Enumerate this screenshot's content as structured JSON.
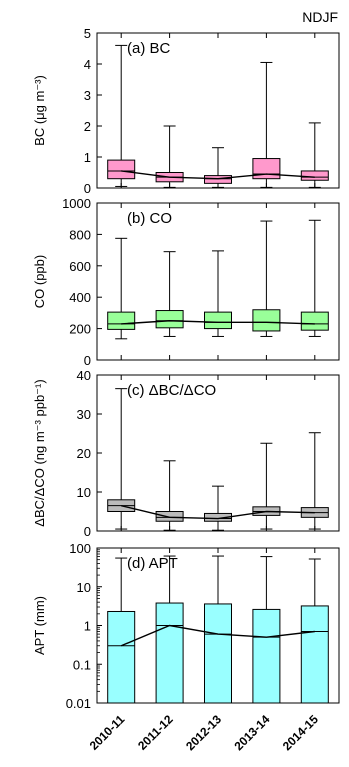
{
  "figure": {
    "season_label": "NDJF"
  },
  "chart_data": [
    {
      "type": "box",
      "panel_label": "(a) BC",
      "ylabel": "BC (μg m⁻³)",
      "ylim": [
        0,
        5
      ],
      "yscale": "linear",
      "yticks": [
        0,
        1,
        2,
        3,
        4,
        5
      ],
      "box_color": "#ff99cc",
      "categories": [
        "2010-11",
        "2011-12",
        "2012-13",
        "2013-14",
        "2014-15"
      ],
      "boxes": [
        {
          "category": "2010-11",
          "min": 0.05,
          "q1": 0.3,
          "median": 0.55,
          "q3": 0.9,
          "max": 4.6
        },
        {
          "category": "2011-12",
          "min": 0.02,
          "q1": 0.2,
          "median": 0.35,
          "q3": 0.5,
          "max": 2.0
        },
        {
          "category": "2012-13",
          "min": 0.02,
          "q1": 0.15,
          "median": 0.3,
          "q3": 0.4,
          "max": 1.3
        },
        {
          "category": "2013-14",
          "min": 0.02,
          "q1": 0.3,
          "median": 0.45,
          "q3": 0.95,
          "max": 4.05
        },
        {
          "category": "2014-15",
          "min": 0.02,
          "q1": 0.25,
          "median": 0.35,
          "q3": 0.55,
          "max": 2.1
        }
      ]
    },
    {
      "type": "box",
      "panel_label": "(b) CO",
      "ylabel": "CO (ppb)",
      "ylim": [
        0,
        1000
      ],
      "yscale": "linear",
      "yticks": [
        0,
        200,
        400,
        600,
        800,
        1000
      ],
      "box_color": "#99ff99",
      "categories": [
        "2010-11",
        "2011-12",
        "2012-13",
        "2013-14",
        "2014-15"
      ],
      "boxes": [
        {
          "category": "2010-11",
          "min": 135,
          "q1": 195,
          "median": 230,
          "q3": 305,
          "max": 775
        },
        {
          "category": "2011-12",
          "min": 150,
          "q1": 205,
          "median": 250,
          "q3": 315,
          "max": 690
        },
        {
          "category": "2012-13",
          "min": 150,
          "q1": 200,
          "median": 240,
          "q3": 305,
          "max": 695
        },
        {
          "category": "2013-14",
          "min": 150,
          "q1": 185,
          "median": 240,
          "q3": 320,
          "max": 885
        },
        {
          "category": "2014-15",
          "min": 150,
          "q1": 190,
          "median": 230,
          "q3": 305,
          "max": 890
        }
      ]
    },
    {
      "type": "box",
      "panel_label": "(c) ΔBC/ΔCO",
      "ylabel": "ΔBC/ΔCO (ng m⁻³ ppb⁻¹)",
      "ylim": [
        0,
        40
      ],
      "yscale": "linear",
      "yticks": [
        0,
        10,
        20,
        30,
        40
      ],
      "box_color": "#bbbbbb",
      "categories": [
        "2010-11",
        "2011-12",
        "2012-13",
        "2013-14",
        "2014-15"
      ],
      "boxes": [
        {
          "category": "2010-11",
          "min": 0.5,
          "q1": 5.0,
          "median": 6.5,
          "q3": 8.0,
          "max": 36.5
        },
        {
          "category": "2011-12",
          "min": 0.2,
          "q1": 2.5,
          "median": 3.5,
          "q3": 5.0,
          "max": 18.0
        },
        {
          "category": "2012-13",
          "min": 0.2,
          "q1": 2.5,
          "median": 3.2,
          "q3": 4.5,
          "max": 11.5
        },
        {
          "category": "2013-14",
          "min": 0.5,
          "q1": 4.0,
          "median": 5.0,
          "q3": 6.2,
          "max": 22.5
        },
        {
          "category": "2014-15",
          "min": 0.5,
          "q1": 3.5,
          "median": 4.7,
          "q3": 6.0,
          "max": 25.2
        }
      ]
    },
    {
      "type": "box",
      "panel_label": "(d) APT",
      "ylabel": "APT (mm)",
      "ylim": [
        0.01,
        100
      ],
      "yscale": "log",
      "yticks": [
        0.01,
        0.1,
        1,
        10,
        100
      ],
      "ytick_labels": [
        "0.01",
        "0.1",
        "1",
        "10",
        "100"
      ],
      "box_color": "#99ffff",
      "categories": [
        "2010-11",
        "2011-12",
        "2012-13",
        "2013-14",
        "2014-15"
      ],
      "boxes": [
        {
          "category": "2010-11",
          "min": 0.01,
          "q1": 0.01,
          "median": 0.3,
          "q3": 2.3,
          "max": 55
        },
        {
          "category": "2011-12",
          "min": 0.01,
          "q1": 0.01,
          "median": 1.0,
          "q3": 3.8,
          "max": 62
        },
        {
          "category": "2012-13",
          "min": 0.01,
          "q1": 0.01,
          "median": 0.6,
          "q3": 3.6,
          "max": 62
        },
        {
          "category": "2013-14",
          "min": 0.01,
          "q1": 0.01,
          "median": 0.5,
          "q3": 2.6,
          "max": 60
        },
        {
          "category": "2014-15",
          "min": 0.01,
          "q1": 0.01,
          "median": 0.7,
          "q3": 3.2,
          "max": 52
        }
      ]
    }
  ]
}
